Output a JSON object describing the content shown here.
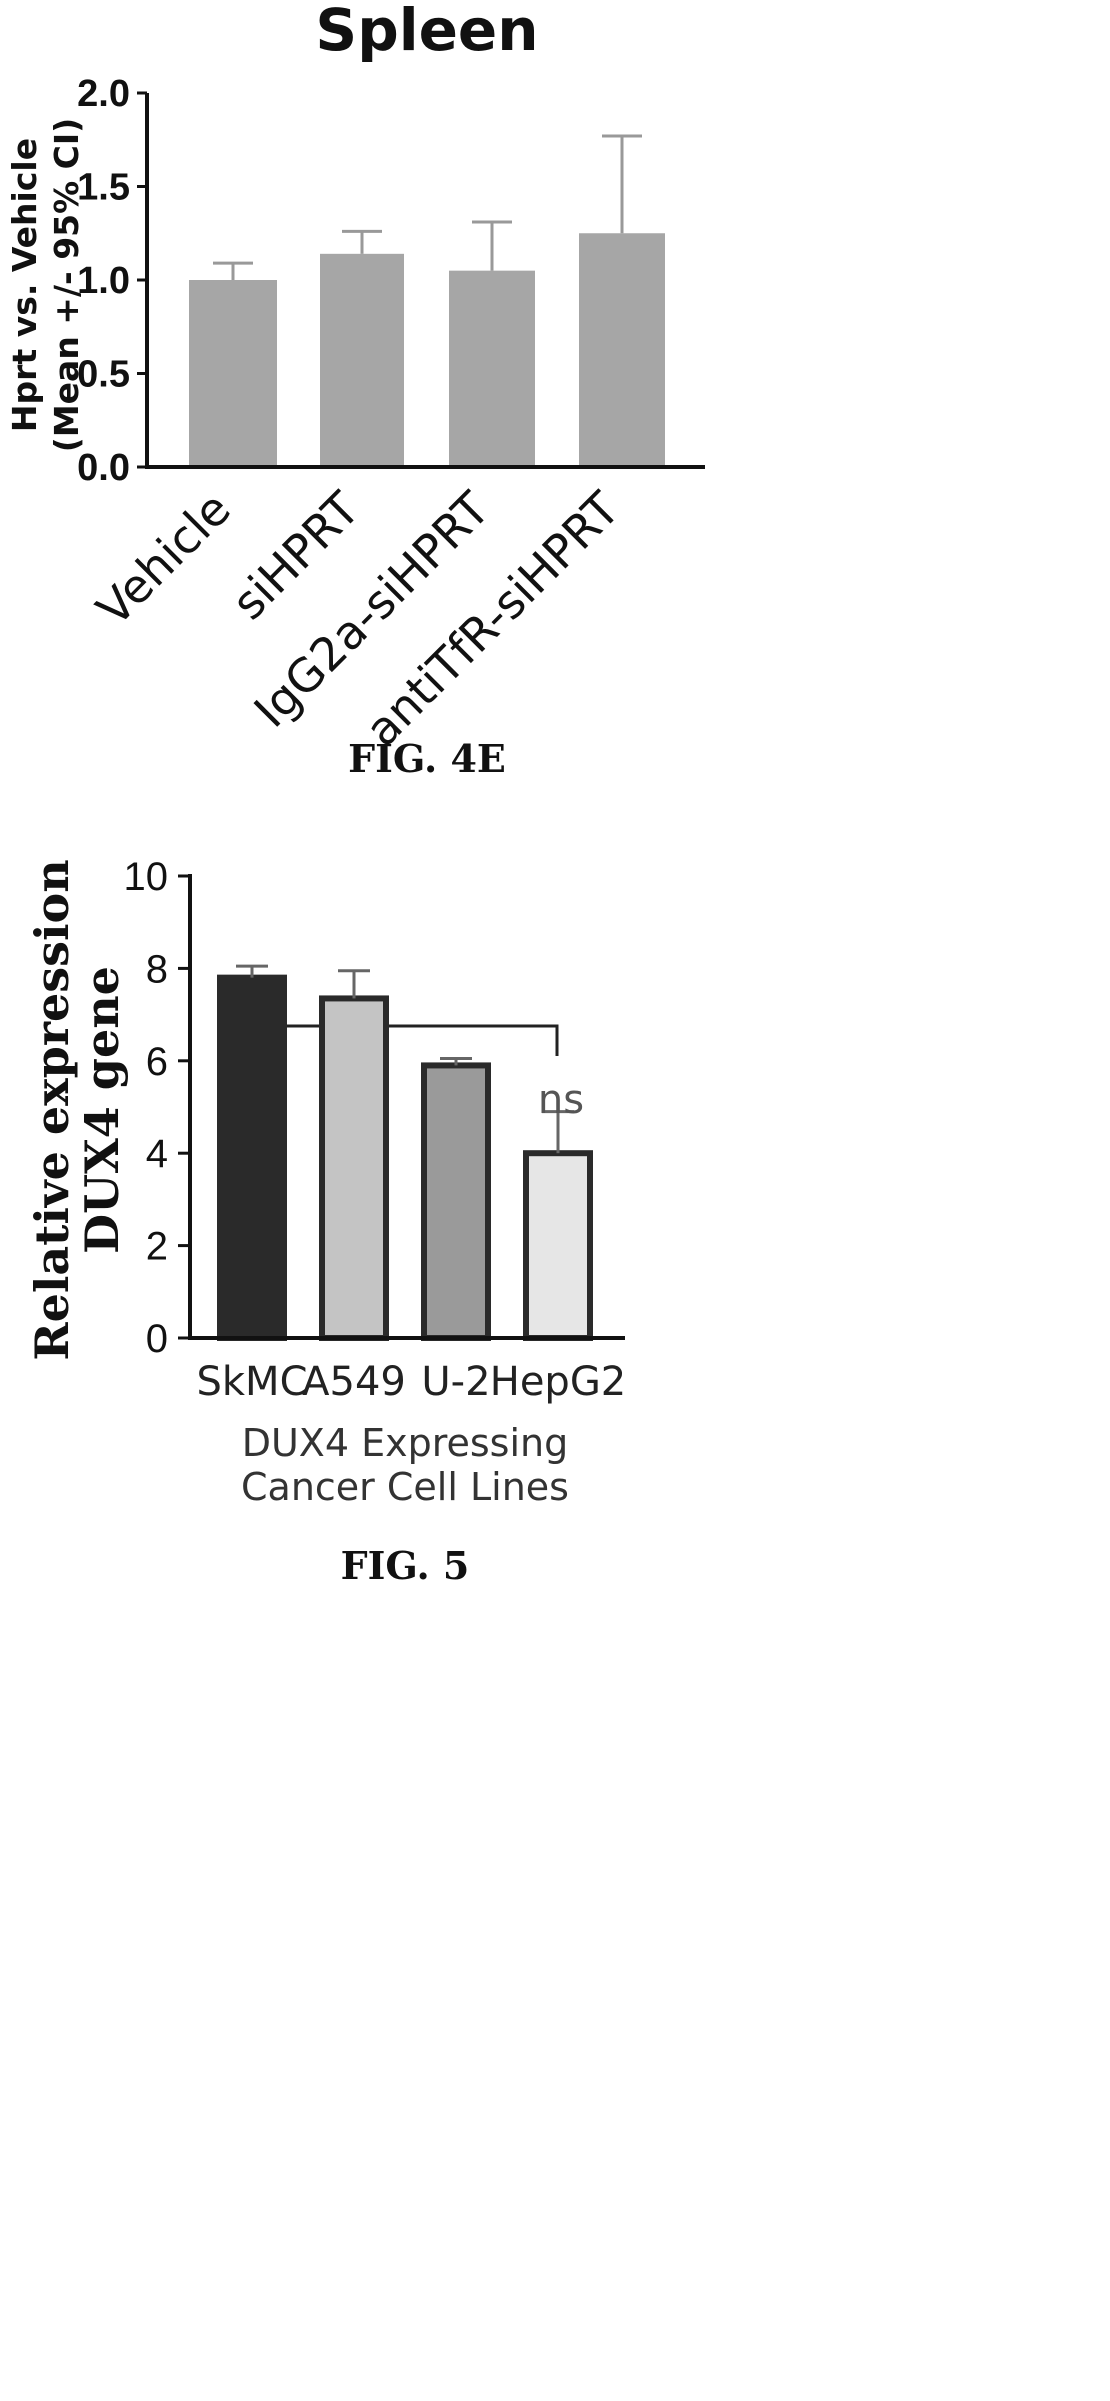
{
  "chart_data": [
    {
      "type": "bar",
      "title": "Spleen",
      "ylabel_lines": [
        "Hprt vs. Vehicle",
        "(Mean +/- 95% CI)"
      ],
      "xlabel": "",
      "categories": [
        "Vehicle",
        "siHPRT",
        "IgG2a-siHPRT",
        "antiTfR-siHPRT"
      ],
      "values": [
        1.0,
        1.14,
        1.05,
        1.25
      ],
      "error_upper": [
        1.09,
        1.26,
        1.31,
        1.77
      ],
      "ylim": [
        0,
        2.0
      ],
      "yticks": [
        "0.0",
        "0.5",
        "1.0",
        "1.5",
        "2.0"
      ],
      "bar_color": "#a6a6a6",
      "grid": false,
      "caption": "FIG. 4E"
    },
    {
      "type": "bar",
      "title": "",
      "ylabel_lines": [
        "Relative expression",
        "DUX4 gene"
      ],
      "xlabel_lines": [
        "DUX4 Expressing",
        "Cancer Cell Lines"
      ],
      "categories": [
        "SkMC",
        "A549",
        "U-2",
        "HepG2"
      ],
      "values": [
        7.8,
        7.35,
        5.9,
        4.0
      ],
      "error_upper": [
        8.05,
        7.95,
        6.05,
        4.9
      ],
      "ylim": [
        0,
        10
      ],
      "yticks": [
        "0",
        "2",
        "4",
        "6",
        "8",
        "10"
      ],
      "bar_colors": [
        "#2a2a2a",
        "#c4c4c4",
        "#9a9a9a",
        "#e6e6e6"
      ],
      "annotation": "ns",
      "grid": false,
      "caption": "FIG. 5"
    }
  ]
}
